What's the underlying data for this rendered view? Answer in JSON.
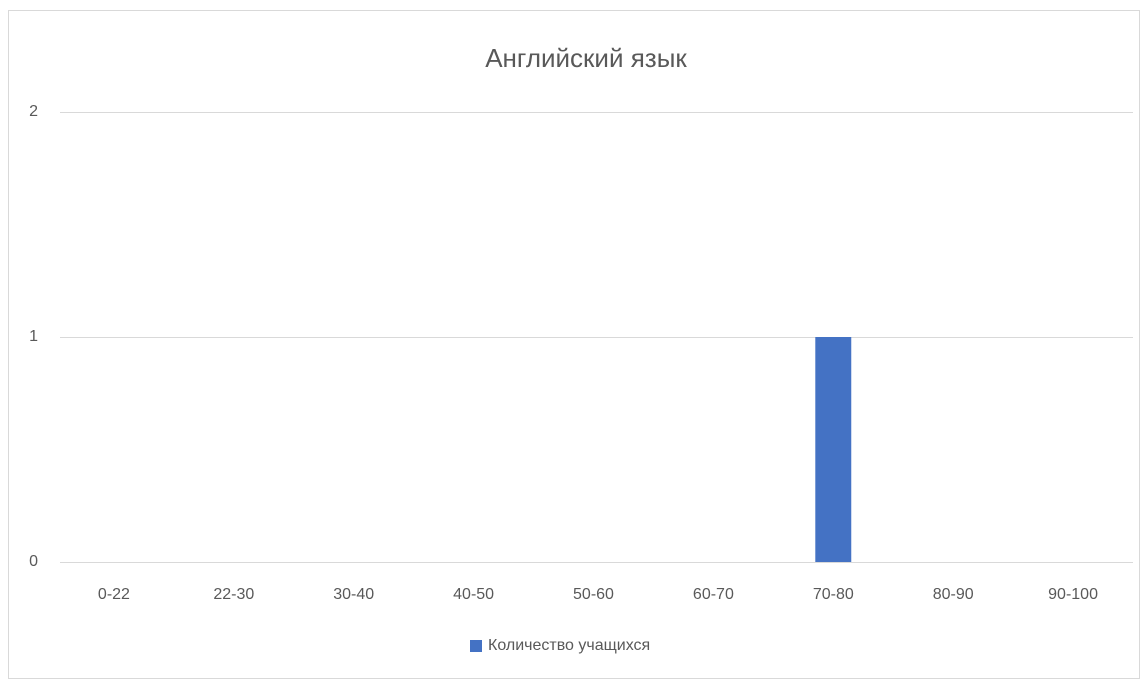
{
  "chart_data": {
    "type": "bar",
    "title": "Английский язык",
    "categories": [
      "0-22",
      "22-30",
      "30-40",
      "40-50",
      "50-60",
      "60-70",
      "70-80",
      "80-90",
      "90-100"
    ],
    "series": [
      {
        "name": "Количество учащихся",
        "color": "#4472c4",
        "values": [
          0,
          0,
          0,
          0,
          0,
          0,
          1,
          0,
          0
        ]
      }
    ],
    "ylim": [
      0,
      2
    ],
    "yticks": [
      0,
      1,
      2
    ],
    "grid": true,
    "legend": "bottom"
  }
}
